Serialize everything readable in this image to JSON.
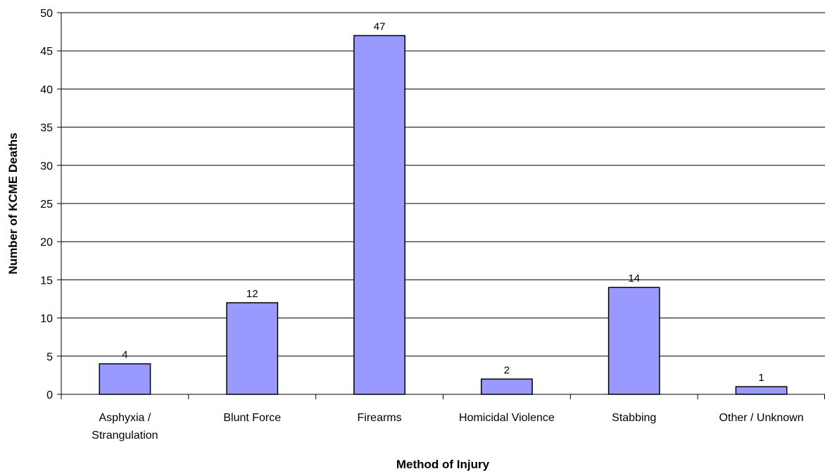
{
  "chart_data": {
    "type": "bar",
    "x_label": "Method of Injury",
    "y_label": "Number of KCME Deaths",
    "categories": [
      "Asphyxia / Strangulation",
      "Blunt Force",
      "Firearms",
      "Homicidal Violence",
      "Stabbing",
      "Other / Unknown"
    ],
    "values": [
      4,
      12,
      47,
      2,
      14,
      1
    ],
    "color": "#9999ff",
    "ylim": [
      0,
      50
    ],
    "yticks": [
      0,
      5,
      10,
      15,
      20,
      25,
      30,
      35,
      40,
      45,
      50
    ],
    "grid": true
  }
}
